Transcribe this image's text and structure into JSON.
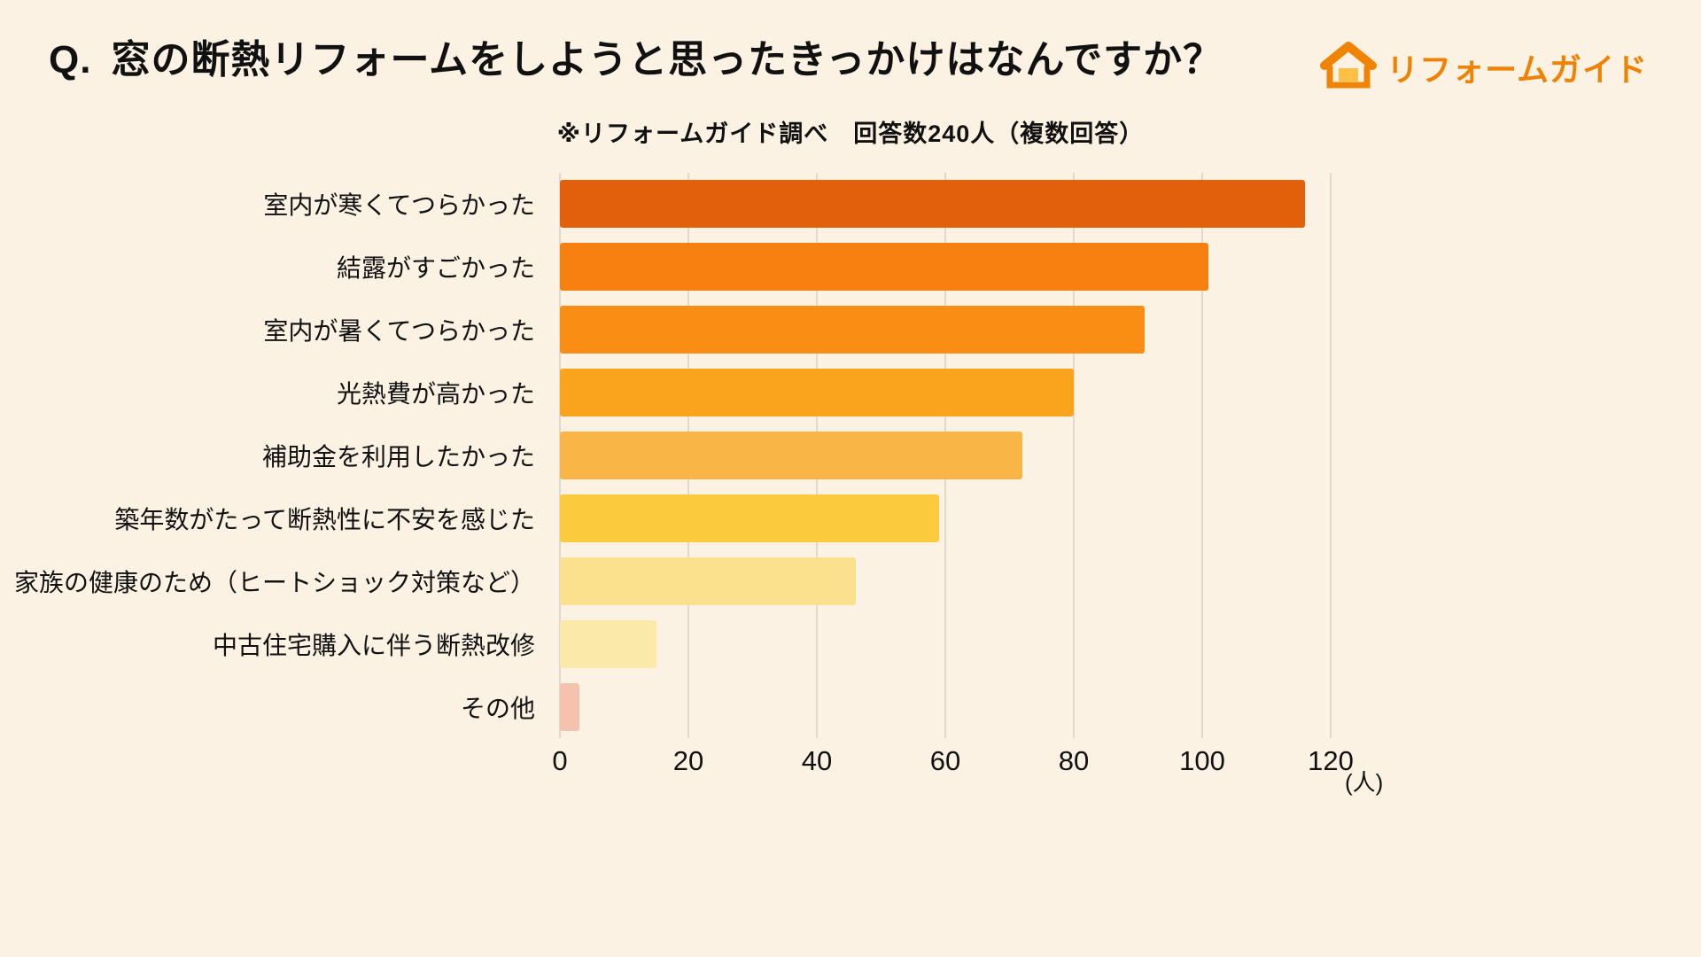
{
  "header": {
    "q_prefix": "Q.",
    "title": "窓の断熱リフォームをしようと思ったきっかけはなんですか？",
    "brand": "リフォームガイド",
    "note": "※リフォームガイド調べ　回答数240人（複数回答）"
  },
  "chart_data": {
    "type": "bar",
    "orientation": "horizontal",
    "title": "窓の断熱リフォームをしようと思ったきっかけ",
    "categories": [
      "室内が寒くてつらかった",
      "結露がすごかった",
      "室内が暑くてつらかった",
      "光熱費が高かった",
      "補助金を利用したかった",
      "築年数がたって断熱性に不安を感じた",
      "家族の健康のため（ヒートショック対策など）",
      "中古住宅購入に伴う断熱改修",
      "その他"
    ],
    "values": [
      116,
      101,
      91,
      80,
      72,
      59,
      46,
      15,
      3
    ],
    "bar_colors": [
      "#E2600B",
      "#F8800E",
      "#FA8E14",
      "#FAA31C",
      "#F9B647",
      "#FCCB3D",
      "#FBE18D",
      "#FBE9A9",
      "#F5C2AE"
    ],
    "xlim": [
      0,
      120
    ],
    "xticks": [
      0,
      20,
      40,
      60,
      80,
      100,
      120
    ],
    "unit_label": "(人)",
    "grid": true,
    "legend": false,
    "background": "#FCF2E4"
  }
}
